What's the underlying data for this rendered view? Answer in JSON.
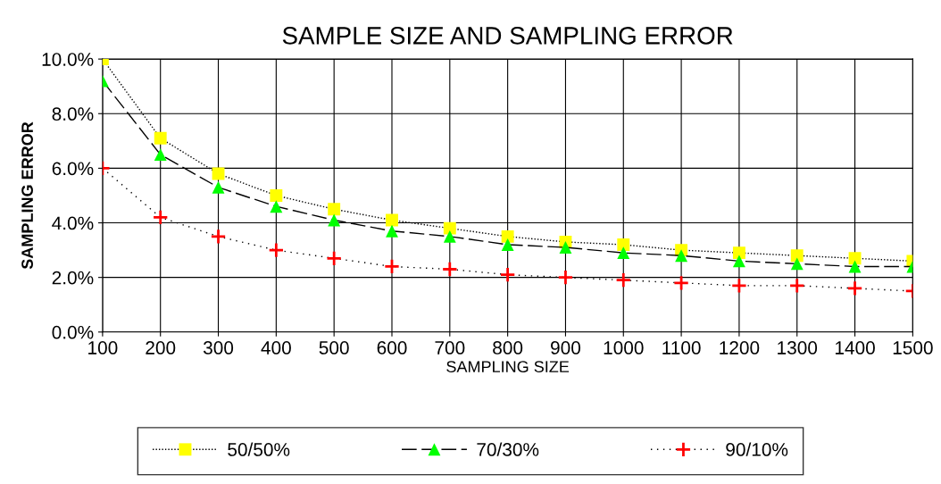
{
  "chart_data": {
    "type": "line",
    "title": "SAMPLE SIZE AND SAMPLING ERROR",
    "xlabel": "SAMPLING SIZE",
    "ylabel": "SAMPLING ERROR",
    "x": [
      100,
      200,
      300,
      400,
      500,
      600,
      700,
      800,
      900,
      1000,
      1100,
      1200,
      1300,
      1400,
      1500
    ],
    "series": [
      {
        "name": "50/50%",
        "color": "#ffff00",
        "marker": "square",
        "line_style": "dotted",
        "values": [
          10.0,
          7.1,
          5.8,
          5.0,
          4.5,
          4.1,
          3.8,
          3.5,
          3.3,
          3.2,
          3.0,
          2.9,
          2.8,
          2.7,
          2.6
        ]
      },
      {
        "name": "70/30%",
        "color": "#00ff00",
        "marker": "triangle",
        "line_style": "dashed",
        "values": [
          9.2,
          6.5,
          5.3,
          4.6,
          4.1,
          3.7,
          3.5,
          3.2,
          3.1,
          2.9,
          2.8,
          2.6,
          2.5,
          2.4,
          2.4
        ]
      },
      {
        "name": "90/10%",
        "color": "#ff0000",
        "marker": "cross",
        "line_style": "dotted",
        "values": [
          6.0,
          4.2,
          3.5,
          3.0,
          2.7,
          2.4,
          2.3,
          2.1,
          2.0,
          1.9,
          1.8,
          1.7,
          1.7,
          1.6,
          1.5
        ]
      }
    ],
    "xlim": [
      100,
      1500
    ],
    "xticks": [
      100,
      200,
      300,
      400,
      500,
      600,
      700,
      800,
      900,
      1000,
      1100,
      1200,
      1300,
      1400,
      1500
    ],
    "ylim": [
      0,
      10
    ],
    "yticks": [
      {
        "value": 0,
        "label": "0.0%"
      },
      {
        "value": 2,
        "label": "2.0%"
      },
      {
        "value": 4,
        "label": "4.0%"
      },
      {
        "value": 6,
        "label": "6.0%"
      },
      {
        "value": 8,
        "label": "8.0%"
      },
      {
        "value": 10,
        "label": "10.0%"
      }
    ],
    "grid": true,
    "legend": "bottom"
  }
}
